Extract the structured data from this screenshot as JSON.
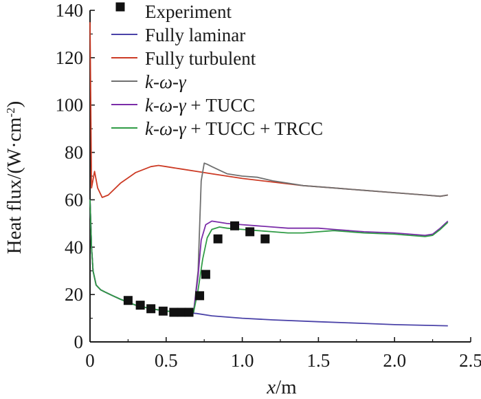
{
  "chart_data": {
    "type": "line",
    "title": "",
    "xlabel": {
      "var": "x",
      "unit": "/m"
    },
    "ylabel": {
      "prefix": "Heat flux/(W·cm",
      "sup": "-2",
      "suffix": ")"
    },
    "xlim": [
      0,
      2.5
    ],
    "ylim": [
      0,
      140
    ],
    "x_ticks": [
      0,
      0.5,
      1.0,
      1.5,
      2.0,
      2.5
    ],
    "x_tick_labels": [
      "0",
      "0.5",
      "1.0",
      "1.5",
      "2.0",
      "2.5"
    ],
    "y_ticks": [
      0,
      20,
      40,
      60,
      80,
      100,
      120,
      140
    ],
    "y_tick_labels": [
      "0",
      "20",
      "40",
      "60",
      "80",
      "100",
      "120",
      "140"
    ],
    "legend_position": "top-left",
    "series": [
      {
        "name": "Experiment",
        "label_parts": [
          {
            "text": "Experiment",
            "italic": false
          }
        ],
        "kind": "marker",
        "color": "#111111",
        "x": [
          0.25,
          0.33,
          0.4,
          0.48,
          0.55,
          0.6,
          0.65,
          0.72,
          0.76,
          0.84,
          0.95,
          1.05,
          1.15
        ],
        "y": [
          17.5,
          15.5,
          14.0,
          13.0,
          12.5,
          12.5,
          12.5,
          19.5,
          28.5,
          43.5,
          49.0,
          46.5,
          43.5
        ]
      },
      {
        "name": "Fully laminar",
        "label_parts": [
          {
            "text": "Fully laminar",
            "italic": false
          }
        ],
        "kind": "line",
        "color": "#4a42a8",
        "x": [
          0.0,
          0.01,
          0.02,
          0.04,
          0.07,
          0.1,
          0.15,
          0.2,
          0.3,
          0.4,
          0.5,
          0.6,
          0.7,
          0.8,
          1.0,
          1.2,
          1.5,
          1.8,
          2.0,
          2.2,
          2.35
        ],
        "y": [
          60,
          40,
          30,
          24,
          22,
          21,
          19.5,
          18,
          15.5,
          14,
          13,
          12.5,
          12,
          11,
          10,
          9.3,
          8.5,
          7.8,
          7.3,
          7.0,
          6.8
        ]
      },
      {
        "name": "Fully turbulent",
        "label_parts": [
          {
            "text": "Fully turbulent",
            "italic": false
          }
        ],
        "kind": "line",
        "color": "#cc3a24",
        "x": [
          0.0,
          0.01,
          0.03,
          0.05,
          0.08,
          0.12,
          0.2,
          0.3,
          0.4,
          0.45,
          0.5,
          0.6,
          0.7,
          0.8,
          0.9,
          1.0,
          1.2,
          1.4,
          1.6,
          1.8,
          2.0,
          2.2,
          2.3,
          2.35
        ],
        "y": [
          135,
          65,
          72,
          65,
          61,
          62,
          67,
          71.5,
          74,
          74.5,
          74,
          73,
          72,
          71,
          70,
          69,
          67.5,
          66,
          65,
          64,
          63,
          62,
          61.5,
          62
        ]
      },
      {
        "name": "k-ω-γ",
        "label_parts": [
          {
            "text": "k-ω-γ",
            "italic": true
          }
        ],
        "kind": "line",
        "color": "#6f6f6f",
        "x": [
          0.0,
          0.01,
          0.02,
          0.04,
          0.07,
          0.1,
          0.15,
          0.2,
          0.3,
          0.4,
          0.5,
          0.6,
          0.68,
          0.71,
          0.73,
          0.75,
          0.77,
          0.8,
          0.85,
          0.9,
          1.0,
          1.1,
          1.2,
          1.3,
          1.4,
          1.6,
          1.8,
          2.0,
          2.2,
          2.3,
          2.35
        ],
        "y": [
          60,
          40,
          30,
          24,
          22,
          21,
          19.5,
          18,
          15.5,
          14,
          13,
          12.5,
          12.5,
          30,
          68,
          75.5,
          75,
          74,
          72.5,
          71,
          70,
          69.5,
          68,
          67,
          66,
          65,
          64,
          63,
          62,
          61.5,
          62
        ]
      },
      {
        "name": "k-ω-γ + TUCC",
        "label_parts": [
          {
            "text": "k-ω-γ",
            "italic": true
          },
          {
            "text": " + TUCC",
            "italic": false
          }
        ],
        "kind": "line",
        "color": "#7a2ca8",
        "x": [
          0.0,
          0.01,
          0.02,
          0.04,
          0.07,
          0.1,
          0.15,
          0.2,
          0.3,
          0.4,
          0.5,
          0.6,
          0.68,
          0.71,
          0.73,
          0.76,
          0.8,
          0.85,
          0.9,
          1.0,
          1.1,
          1.2,
          1.3,
          1.4,
          1.5,
          1.6,
          1.7,
          1.8,
          2.0,
          2.1,
          2.2,
          2.25,
          2.3,
          2.35
        ],
        "y": [
          60,
          40,
          30,
          24,
          22,
          21,
          19.5,
          18,
          15.5,
          14,
          13,
          12.5,
          12.5,
          28,
          43,
          49.5,
          51,
          50.5,
          50,
          49.5,
          49,
          48.5,
          48,
          48,
          48,
          47.5,
          47,
          46.5,
          46,
          45.5,
          45,
          45.5,
          48,
          51
        ]
      },
      {
        "name": "k-ω-γ + TUCC + TRCC",
        "label_parts": [
          {
            "text": "k-ω-γ",
            "italic": true
          },
          {
            "text": " + TUCC + TRCC",
            "italic": false
          }
        ],
        "kind": "line",
        "color": "#2f9b45",
        "x": [
          0.0,
          0.01,
          0.02,
          0.04,
          0.07,
          0.1,
          0.15,
          0.2,
          0.3,
          0.4,
          0.5,
          0.6,
          0.68,
          0.71,
          0.74,
          0.77,
          0.8,
          0.85,
          0.9,
          1.0,
          1.1,
          1.2,
          1.3,
          1.4,
          1.5,
          1.6,
          1.7,
          1.8,
          2.0,
          2.1,
          2.2,
          2.25,
          2.3,
          2.35
        ],
        "y": [
          60,
          40,
          30,
          24,
          22,
          21,
          19.5,
          18,
          15.5,
          14,
          13,
          12.5,
          12.5,
          22,
          35,
          44,
          47.5,
          48.5,
          48,
          47.5,
          47,
          46.5,
          46,
          46,
          46.5,
          47,
          46.5,
          46,
          45.5,
          45,
          44.5,
          45,
          47.5,
          50.5
        ]
      }
    ]
  }
}
